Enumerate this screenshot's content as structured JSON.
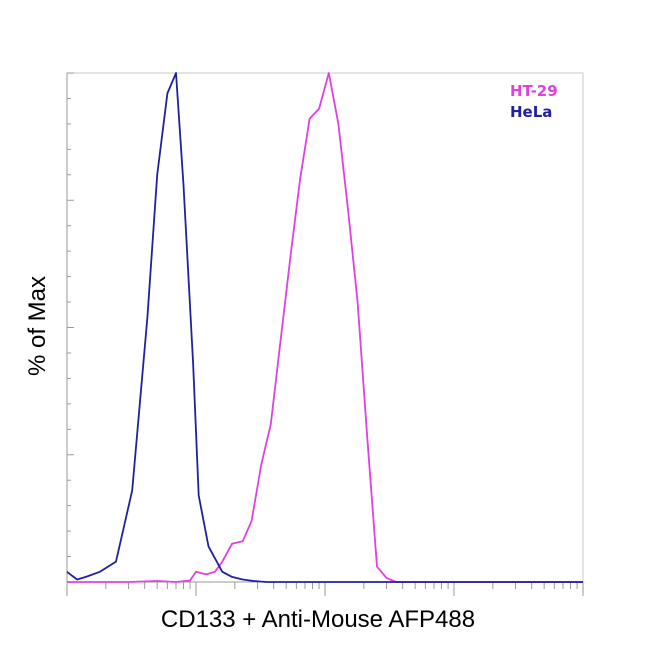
{
  "chart_data": {
    "type": "line",
    "title": "",
    "xlabel": "CD133 + Anti-Mouse AFP488",
    "ylabel": "% of Max",
    "x_scale": "log",
    "xlim": [
      0.1,
      1000
    ],
    "ylim": [
      0,
      100
    ],
    "grid": false,
    "legend_position": "top-right",
    "series": [
      {
        "name": "HT-29",
        "color": "#e040e0",
        "x": [
          0.1,
          0.3,
          0.5,
          0.7,
          0.9,
          1.0,
          1.2,
          1.4,
          1.6,
          1.9,
          2.3,
          2.7,
          3.2,
          3.8,
          4.5,
          5.4,
          6.4,
          7.6,
          9.0,
          10.7,
          12.7,
          15.1,
          17.9,
          21.3,
          25.3,
          30,
          35.6,
          42.3,
          50.3,
          59.7,
          70.9,
          84.2,
          100,
          200,
          500,
          1000
        ],
        "y": [
          0,
          0,
          0.2,
          0,
          0.3,
          2,
          1.5,
          2,
          4,
          7.5,
          8,
          12,
          23,
          31,
          47,
          64,
          79,
          91,
          93,
          100,
          90,
          73,
          55,
          28,
          3,
          0.8,
          0,
          0,
          0,
          0,
          0,
          0,
          0,
          0,
          0,
          0
        ]
      },
      {
        "name": "HeLa",
        "color": "#2020a0",
        "x": [
          0.1,
          0.11,
          0.12,
          0.14,
          0.18,
          0.24,
          0.32,
          0.42,
          0.5,
          0.6,
          0.7,
          0.8,
          0.95,
          1.05,
          1.25,
          1.6,
          1.9,
          2.3,
          2.8,
          3.5,
          5,
          10,
          100,
          1000
        ],
        "y": [
          2,
          1.2,
          0.5,
          1,
          2,
          4,
          18,
          52,
          80,
          96,
          100,
          78,
          43,
          17,
          7,
          2,
          1,
          0.5,
          0.2,
          0,
          0,
          0,
          0,
          0
        ]
      }
    ]
  }
}
